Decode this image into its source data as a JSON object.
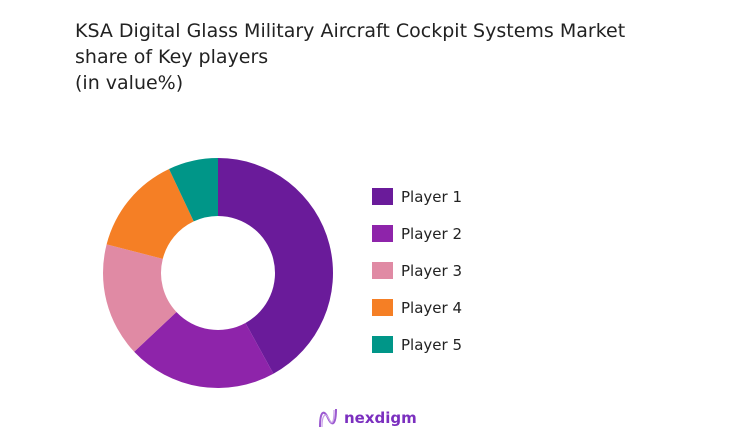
{
  "chart_data": {
    "type": "pie",
    "donut": true,
    "title_lines": [
      "KSA Digital Glass Military Aircraft Cockpit Systems Market",
      "share of Key players",
      "(in value%)"
    ],
    "categories": [
      "Player 1",
      "Player 2",
      "Player 3",
      "Player 4",
      "Player 5"
    ],
    "values": [
      42,
      21,
      16,
      14,
      7
    ],
    "colors": [
      "#6a1b9a",
      "#8e24aa",
      "#e08aa4",
      "#f57f25",
      "#009688"
    ],
    "legend_position": "right"
  },
  "brand": {
    "logo_text": "nexdigm",
    "color": "#7b2fbf"
  }
}
